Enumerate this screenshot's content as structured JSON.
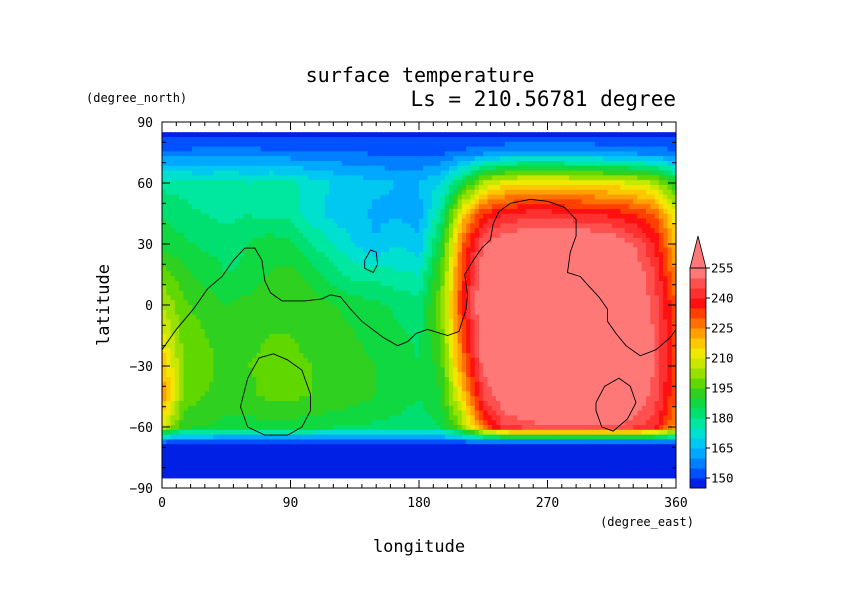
{
  "chart_data": {
    "type": "heatmap",
    "title": "surface temperature",
    "subtitle": "Ls = 210.56781 degree",
    "xlabel": "longitude",
    "ylabel": "latitude",
    "xunit": "(degree_east)",
    "yunit": "(degree_north)",
    "xlim": [
      0,
      360
    ],
    "ylim": [
      -90,
      90
    ],
    "x_ticks": [
      "0",
      "90",
      "180",
      "270",
      "360"
    ],
    "y_ticks": [
      "90",
      "60",
      "30",
      "0",
      "−30",
      "−60",
      "−90"
    ],
    "colorbar": {
      "levels": [
        140,
        145,
        150,
        155,
        160,
        165,
        170,
        175,
        180,
        185,
        190,
        195,
        200,
        205,
        210,
        215,
        220,
        225,
        230,
        235,
        240,
        245,
        250,
        255,
        260
      ],
      "tick_labels": [
        "150",
        "165",
        "180",
        "195",
        "210",
        "225",
        "240",
        "255"
      ],
      "colors": [
        "#0000c8",
        "#0020e6",
        "#0050ff",
        "#0080ff",
        "#00a8ff",
        "#00c8f0",
        "#00e0d0",
        "#00e8a0",
        "#00e070",
        "#10d840",
        "#30d020",
        "#60d800",
        "#98e000",
        "#c8e800",
        "#f0e800",
        "#ffc800",
        "#ffa000",
        "#ff7000",
        "#ff4000",
        "#ff1010",
        "#ff3030",
        "#ff5050",
        "#ff7878"
      ],
      "overflow_color": "#ff7878"
    },
    "temperature_field_K": {
      "rows_lat_desc": [
        85,
        75,
        60,
        45,
        30,
        15,
        0,
        -15,
        -30,
        -45,
        -60,
        -68,
        -75,
        -85
      ],
      "cols_lon": [
        0,
        15,
        30,
        45,
        60,
        75,
        90,
        105,
        120,
        135,
        150,
        165,
        180,
        195,
        210,
        225,
        240,
        255,
        270,
        285,
        300,
        315,
        330,
        345,
        360
      ],
      "values": [
        [
          148,
          148,
          148,
          148,
          148,
          148,
          148,
          148,
          148,
          148,
          148,
          148,
          148,
          148,
          148,
          148,
          148,
          148,
          148,
          148,
          148,
          148,
          148,
          148,
          148
        ],
        [
          156,
          156,
          157,
          157,
          157,
          156,
          156,
          155,
          155,
          155,
          154,
          154,
          154,
          154,
          156,
          158,
          160,
          162,
          162,
          161,
          160,
          159,
          158,
          157,
          156
        ],
        [
          178,
          178,
          175,
          178,
          175,
          177,
          176,
          172,
          170,
          168,
          166,
          165,
          165,
          170,
          185,
          205,
          212,
          215,
          215,
          214,
          213,
          212,
          210,
          205,
          190
        ],
        [
          185,
          182,
          180,
          178,
          180,
          178,
          178,
          172,
          168,
          166,
          164,
          164,
          163,
          178,
          215,
          235,
          240,
          242,
          242,
          241,
          240,
          238,
          235,
          230,
          210
        ],
        [
          188,
          186,
          184,
          183,
          185,
          188,
          186,
          180,
          175,
          170,
          165,
          170,
          166,
          188,
          228,
          250,
          256,
          258,
          258,
          258,
          258,
          256,
          250,
          240,
          218
        ],
        [
          198,
          192,
          188,
          185,
          186,
          190,
          192,
          188,
          182,
          178,
          178,
          176,
          175,
          195,
          232,
          256,
          258,
          258,
          258,
          258,
          258,
          258,
          256,
          245,
          225
        ],
        [
          205,
          196,
          193,
          190,
          192,
          194,
          195,
          192,
          190,
          188,
          186,
          184,
          182,
          198,
          235,
          258,
          258,
          258,
          258,
          258,
          258,
          258,
          258,
          248,
          230
        ],
        [
          212,
          198,
          195,
          193,
          194,
          195,
          195,
          194,
          193,
          190,
          188,
          186,
          184,
          196,
          230,
          256,
          258,
          258,
          258,
          258,
          258,
          258,
          258,
          250,
          232
        ],
        [
          220,
          200,
          197,
          193,
          195,
          196,
          196,
          195,
          194,
          192,
          190,
          188,
          185,
          192,
          225,
          252,
          258,
          258,
          258,
          258,
          258,
          258,
          258,
          250,
          232
        ],
        [
          225,
          198,
          195,
          193,
          194,
          196,
          196,
          195,
          194,
          192,
          190,
          188,
          185,
          190,
          215,
          245,
          256,
          258,
          258,
          258,
          258,
          258,
          256,
          248,
          230
        ],
        [
          210,
          192,
          190,
          188,
          188,
          188,
          188,
          187,
          186,
          185,
          184,
          183,
          182,
          185,
          200,
          230,
          245,
          248,
          250,
          250,
          250,
          250,
          248,
          242,
          222
        ],
        [
          150,
          150,
          150,
          150,
          150,
          150,
          150,
          150,
          150,
          150,
          150,
          150,
          150,
          150,
          150,
          150,
          150,
          150,
          150,
          150,
          150,
          150,
          150,
          150,
          150
        ],
        [
          148,
          148,
          148,
          148,
          148,
          148,
          148,
          148,
          148,
          148,
          148,
          148,
          148,
          148,
          148,
          148,
          148,
          148,
          148,
          148,
          148,
          148,
          148,
          148,
          148
        ],
        [
          148,
          148,
          148,
          148,
          148,
          148,
          148,
          148,
          148,
          148,
          148,
          148,
          148,
          148,
          148,
          148,
          148,
          148,
          148,
          148,
          148,
          148,
          148,
          148,
          148
        ]
      ]
    },
    "topography_contours": [
      [
        [
          0,
          -22
        ],
        [
          10,
          -12
        ],
        [
          22,
          -2
        ],
        [
          32,
          8
        ],
        [
          42,
          14
        ],
        [
          50,
          22
        ],
        [
          58,
          28
        ],
        [
          65,
          28
        ],
        [
          70,
          22
        ],
        [
          72,
          12
        ],
        [
          76,
          6
        ],
        [
          84,
          2
        ],
        [
          100,
          2
        ],
        [
          112,
          3
        ],
        [
          118,
          5
        ],
        [
          125,
          4
        ],
        [
          132,
          -2
        ],
        [
          140,
          -8
        ],
        [
          155,
          -16
        ],
        [
          165,
          -20
        ],
        [
          172,
          -18
        ],
        [
          178,
          -14
        ],
        [
          186,
          -12
        ],
        [
          200,
          -15
        ],
        [
          208,
          -13
        ],
        [
          213,
          -2
        ],
        [
          214,
          5
        ],
        [
          212,
          15
        ],
        [
          218,
          22
        ],
        [
          224,
          28
        ],
        [
          230,
          32
        ],
        [
          232,
          40
        ],
        [
          236,
          46
        ],
        [
          244,
          50
        ],
        [
          258,
          52
        ],
        [
          270,
          51
        ],
        [
          282,
          48
        ],
        [
          290,
          42
        ],
        [
          290,
          34
        ],
        [
          286,
          26
        ],
        [
          284,
          16
        ],
        [
          293,
          14
        ],
        [
          298,
          10
        ],
        [
          306,
          4
        ],
        [
          312,
          -2
        ],
        [
          312,
          -8
        ],
        [
          318,
          -14
        ],
        [
          325,
          -20
        ],
        [
          335,
          -25
        ],
        [
          346,
          -22
        ],
        [
          356,
          -16
        ],
        [
          360,
          -12
        ]
      ],
      [
        [
          142,
          22
        ],
        [
          146,
          27
        ],
        [
          150,
          26
        ],
        [
          151,
          20
        ],
        [
          148,
          16
        ],
        [
          142,
          18
        ],
        [
          142,
          22
        ]
      ],
      [
        [
          55,
          -50
        ],
        [
          60,
          -36
        ],
        [
          68,
          -26
        ],
        [
          78,
          -24
        ],
        [
          88,
          -27
        ],
        [
          98,
          -32
        ],
        [
          104,
          -44
        ],
        [
          104,
          -52
        ],
        [
          98,
          -60
        ],
        [
          88,
          -64
        ],
        [
          72,
          -64
        ],
        [
          60,
          -60
        ],
        [
          55,
          -50
        ]
      ],
      [
        [
          304,
          -48
        ],
        [
          310,
          -40
        ],
        [
          320,
          -36
        ],
        [
          328,
          -40
        ],
        [
          332,
          -48
        ],
        [
          326,
          -56
        ],
        [
          316,
          -62
        ],
        [
          308,
          -60
        ],
        [
          304,
          -52
        ],
        [
          304,
          -48
        ]
      ]
    ]
  }
}
